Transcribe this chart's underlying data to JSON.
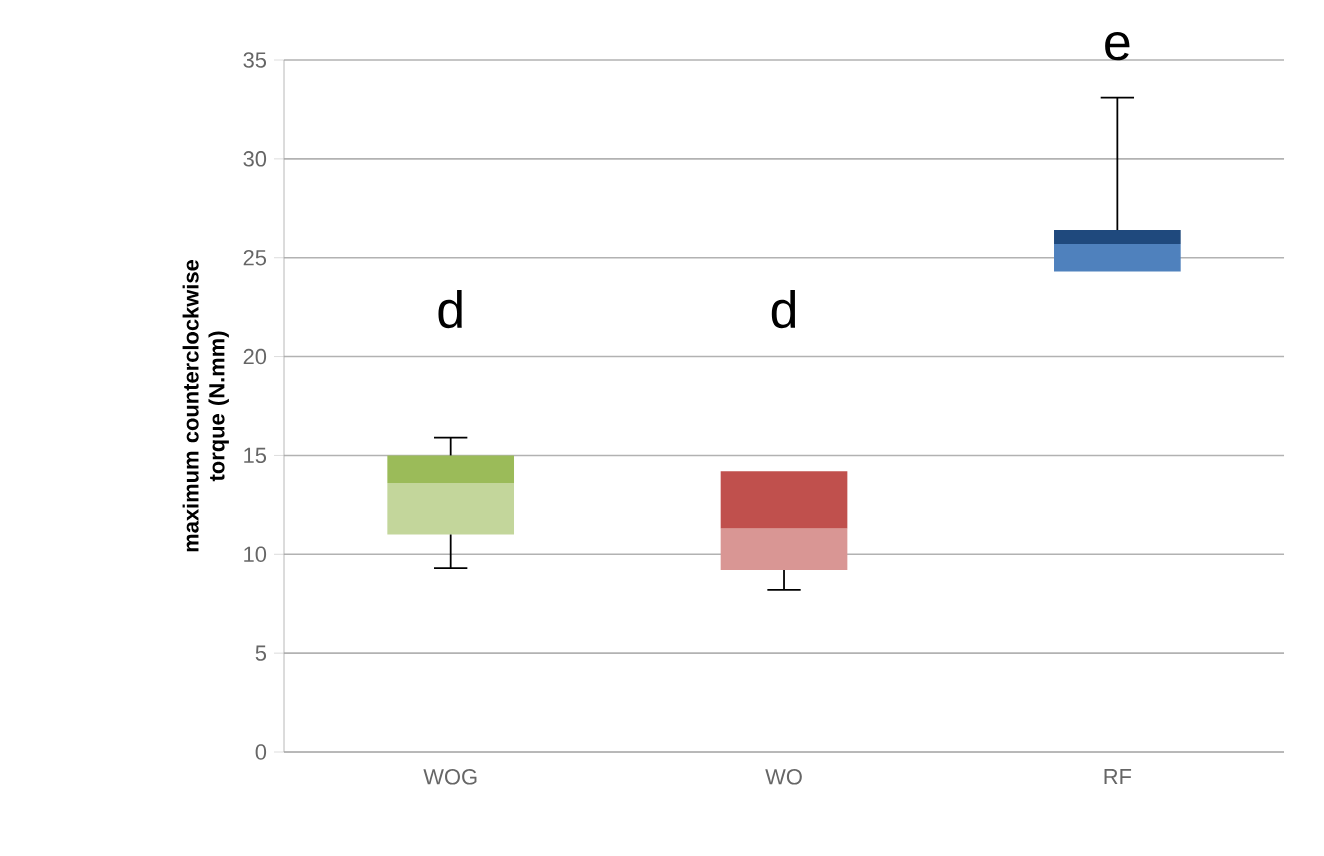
{
  "chart_data": {
    "type": "box",
    "ylabel": "maximum counterclockwise torque (N.mm)",
    "categories": [
      "WOG",
      "WO",
      "RF"
    ],
    "boxes": [
      {
        "low": 9.3,
        "q1": 11.0,
        "median": 13.6,
        "q3": 15.0,
        "high": 15.9
      },
      {
        "low": 8.2,
        "q1": 9.2,
        "median": 11.3,
        "q3": 14.2,
        "high": 14.2
      },
      {
        "low": 24.3,
        "q1": 24.3,
        "median": 25.7,
        "q3": 26.4,
        "high": 33.1
      }
    ],
    "colors": [
      [
        "#c3d69b",
        "#9bbb59"
      ],
      [
        "#d99694",
        "#c0504d"
      ],
      [
        "#4f81bd",
        "#1f497d"
      ]
    ],
    "ylim": [
      0,
      35
    ],
    "yticks": [
      0,
      5,
      10,
      15,
      20,
      25,
      30,
      35
    ],
    "grid": "y",
    "annotations": [
      "d",
      "d",
      "e"
    ]
  }
}
